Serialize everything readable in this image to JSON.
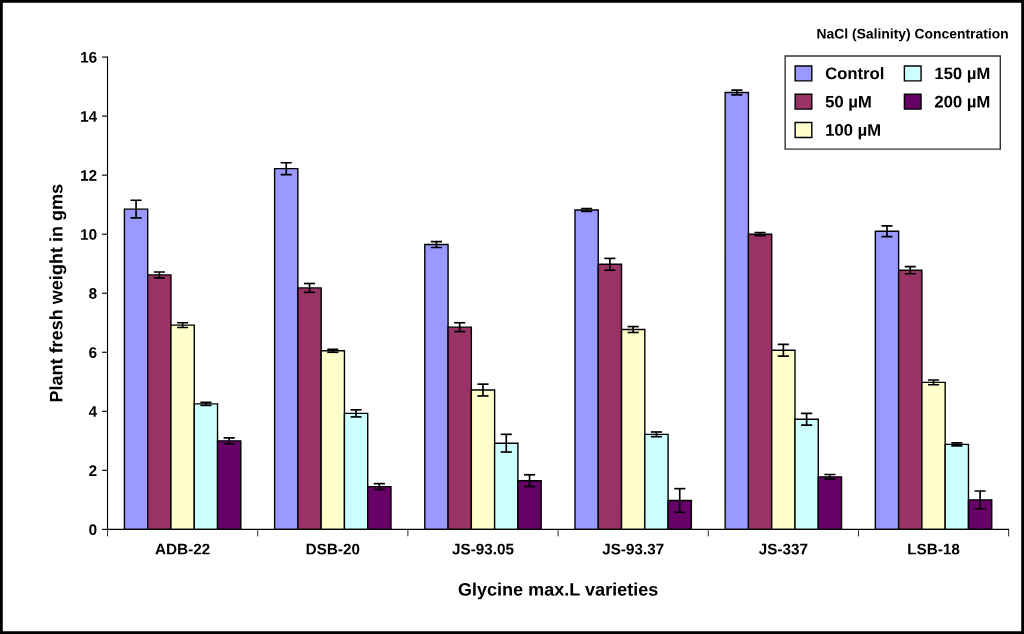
{
  "chart_data": {
    "type": "bar",
    "xlabel": "Glycine max.L varieties",
    "ylabel": "Plant fresh weight in gms",
    "legend_title": "NaCl (Salinity) Concentration",
    "legend": "top right",
    "grid": false,
    "categories": [
      "ADB-22",
      "DSB-20",
      "JS-93.05",
      "JS-93.37",
      "JS-337",
      "LSB-18"
    ],
    "ylim": [
      0,
      16
    ],
    "yticks": [
      0,
      2,
      4,
      6,
      8,
      10,
      12,
      14,
      16
    ],
    "series": [
      {
        "name": "Control",
        "color": "#9999ff",
        "values": [
          10.85,
          12.22,
          9.65,
          10.82,
          14.8,
          10.1
        ],
        "errors": [
          0.3,
          0.2,
          0.1,
          0.05,
          0.08,
          0.18
        ]
      },
      {
        "name": "50 µM",
        "color": "#993366",
        "values": [
          8.62,
          8.18,
          6.85,
          8.98,
          10.0,
          8.78
        ],
        "errors": [
          0.1,
          0.15,
          0.15,
          0.2,
          0.05,
          0.12
        ]
      },
      {
        "name": "100 µM",
        "color": "#ffffcc",
        "values": [
          6.92,
          6.05,
          4.72,
          6.77,
          6.07,
          4.98
        ],
        "errors": [
          0.08,
          0.05,
          0.2,
          0.1,
          0.2,
          0.08
        ]
      },
      {
        "name": "150 µM",
        "color": "#ccffff",
        "values": [
          4.25,
          3.93,
          2.92,
          3.22,
          3.73,
          2.88
        ],
        "errors": [
          0.05,
          0.12,
          0.3,
          0.08,
          0.2,
          0.05
        ]
      },
      {
        "name": "200 µM",
        "color": "#660066",
        "values": [
          3.0,
          1.45,
          1.65,
          0.98,
          1.78,
          1.0
        ],
        "errors": [
          0.1,
          0.1,
          0.2,
          0.4,
          0.08,
          0.3
        ]
      }
    ]
  }
}
